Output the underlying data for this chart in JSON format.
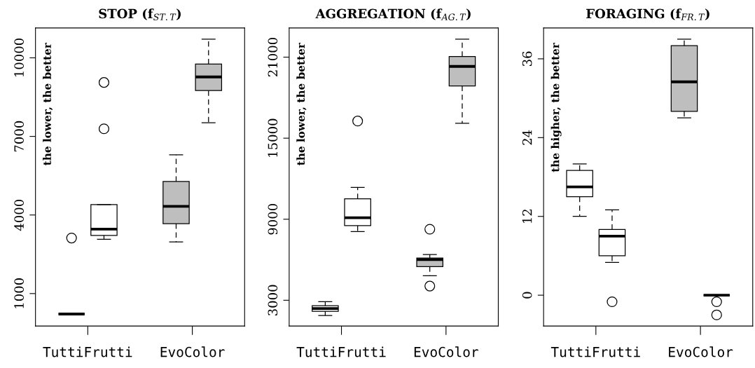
{
  "chart_data": [
    {
      "type": "box",
      "title": "STOP (f$_{ST.T}$)",
      "categories": [
        "TuttiFrutti",
        "EvoColor"
      ],
      "ylim": [
        -240,
        11140
      ],
      "yticks": [
        1000,
        4000,
        7000,
        10000
      ],
      "annotations": [
        "the lower, the better"
      ],
      "grid": false,
      "series": [
        {
          "colors": [
            "#000000",
            "#bebebe"
          ],
          "boxes": [
            {
              "low": 220,
              "q1": 220,
              "median": 220,
              "q3": 220,
              "high": 220,
              "outliers": [
                3120
              ]
            },
            {
              "low": 2970,
              "q1": 3670,
              "median": 4330,
              "q3": 5280,
              "high": 6300
            }
          ]
        },
        {
          "colors": [
            "#ffffff",
            "#bebebe"
          ],
          "boxes": [
            {
              "low": 3070,
              "q1": 3220,
              "median": 3460,
              "q3": 4400,
              "high": 4400,
              "outliers": [
                9060,
                7290
              ]
            },
            {
              "low": 7520,
              "q1": 8750,
              "median": 9270,
              "q3": 9760,
              "high": 10710
            }
          ]
        }
      ]
    },
    {
      "type": "box",
      "title": "AGGREGATION (f$_{AG.T}$)",
      "categories": [
        "TuttiFrutti",
        "EvoColor"
      ],
      "ylim": [
        1090,
        23160
      ],
      "yticks": [
        3000,
        9000,
        15000,
        21000
      ],
      "annotations": [
        "the lower, the better"
      ],
      "grid": false,
      "series": [
        {
          "colors": [
            "#ffffff",
            "#bebebe"
          ],
          "boxes": [
            {
              "low": 1870,
              "q1": 2180,
              "median": 2390,
              "q3": 2600,
              "high": 2890
            },
            {
              "low": 4820,
              "q1": 5490,
              "median": 6010,
              "q3": 6130,
              "high": 6390,
              "outliers": [
                8260,
                4050
              ]
            }
          ]
        },
        {
          "colors": [
            "#ffffff",
            "#bebebe"
          ],
          "boxes": [
            {
              "low": 8090,
              "q1": 8520,
              "median": 9110,
              "q3": 10510,
              "high": 11360,
              "outliers": [
                16270
              ]
            },
            {
              "low": 16100,
              "q1": 18870,
              "median": 20310,
              "q3": 21040,
              "high": 22330
            }
          ]
        }
      ]
    },
    {
      "type": "box",
      "title": "FORAGING (f$_{FR.T}$)",
      "categories": [
        "TuttiFrutti",
        "EvoColor"
      ],
      "ylim": [
        -4.7,
        40.7
      ],
      "yticks": [
        0,
        12,
        24,
        36
      ],
      "annotations": [
        "the higher, the better"
      ],
      "grid": false,
      "series": [
        {
          "colors": [
            "#ffffff",
            "#bebebe"
          ],
          "boxes": [
            {
              "low": 12,
              "q1": 15,
              "median": 16.5,
              "q3": 19,
              "high": 20
            },
            {
              "low": 27,
              "q1": 28,
              "median": 32.5,
              "q3": 38,
              "high": 39
            }
          ]
        },
        {
          "colors": [
            "#ffffff",
            "#000000"
          ],
          "boxes": [
            {
              "low": 5,
              "q1": 6,
              "median": 9,
              "q3": 10,
              "high": 13,
              "outliers": [
                -1
              ]
            },
            {
              "low": 0,
              "q1": 0,
              "median": 0,
              "q3": 0,
              "high": 0,
              "outliers": [
                -1,
                -3
              ]
            }
          ]
        }
      ]
    }
  ]
}
